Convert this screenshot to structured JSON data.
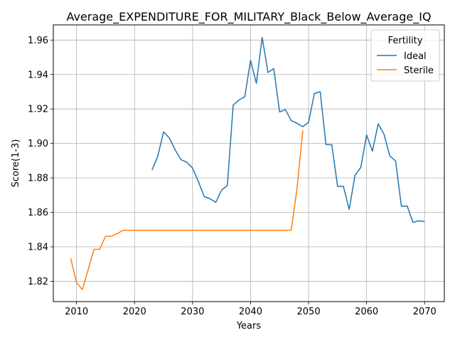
{
  "chart_data": {
    "type": "line",
    "title": "Average_EXPENDITURE_FOR_MILITARY_Black_Below_Average_IQ",
    "xlabel": "Years",
    "ylabel": "Score(1-3)",
    "xlim": [
      2006,
      2073.4
    ],
    "ylim": [
      1.8082,
      1.9688
    ],
    "xticks": [
      2010,
      2020,
      2030,
      2040,
      2050,
      2060,
      2070
    ],
    "yticks": [
      1.82,
      1.84,
      1.86,
      1.88,
      1.9,
      1.92,
      1.94,
      1.96
    ],
    "ytick_labels": [
      "1.82",
      "1.84",
      "1.86",
      "1.88",
      "1.90",
      "1.92",
      "1.94",
      "1.96"
    ],
    "grid": true,
    "legend": {
      "title": "Fertility",
      "position": "upper right"
    },
    "series": [
      {
        "name": "Ideal",
        "color": "#1f77b4",
        "x": [
          2023,
          2024,
          2025,
          2026,
          2027,
          2028,
          2029,
          2030,
          2031,
          2032,
          2033,
          2034,
          2035,
          2036,
          2037,
          2038,
          2039,
          2040,
          2041,
          2042,
          2043,
          2044,
          2045,
          2046,
          2047,
          2048,
          2049,
          2050,
          2051,
          2052,
          2053,
          2054,
          2055,
          2056,
          2057,
          2058,
          2059,
          2060,
          2061,
          2062,
          2063,
          2064,
          2065,
          2066,
          2067,
          2068,
          2069,
          2070
        ],
        "y": [
          1.8845,
          1.8925,
          1.9067,
          1.9032,
          1.8963,
          1.8906,
          1.8891,
          1.8857,
          1.8779,
          1.8692,
          1.8679,
          1.8658,
          1.8729,
          1.8756,
          1.9222,
          1.9252,
          1.9271,
          1.9482,
          1.9349,
          1.9615,
          1.9412,
          1.9434,
          1.9183,
          1.9196,
          1.9133,
          1.9117,
          1.9097,
          1.9123,
          1.929,
          1.93,
          1.8993,
          1.8993,
          1.8751,
          1.8751,
          1.8617,
          1.8815,
          1.8861,
          1.905,
          1.8955,
          1.9114,
          1.9054,
          1.8927,
          1.8898,
          1.8635,
          1.8636,
          1.8542,
          1.8551,
          1.8546
        ]
      },
      {
        "name": "Sterile",
        "color": "#ff7f0e",
        "x": [
          2009,
          2010,
          2011,
          2012,
          2013,
          2014,
          2015,
          2016,
          2017,
          2018,
          2019,
          2020,
          2021,
          2022,
          2023,
          2024,
          2025,
          2026,
          2027,
          2028,
          2029,
          2030,
          2031,
          2032,
          2033,
          2034,
          2035,
          2036,
          2037,
          2038,
          2039,
          2040,
          2041,
          2042,
          2043,
          2044,
          2045,
          2046,
          2047,
          2048,
          2049
        ],
        "y": [
          1.8333,
          1.8192,
          1.8152,
          1.8267,
          1.8385,
          1.8386,
          1.8461,
          1.8462,
          1.8476,
          1.8496,
          1.8496,
          1.8496,
          1.8496,
          1.8496,
          1.8496,
          1.8496,
          1.8496,
          1.8496,
          1.8496,
          1.8496,
          1.8496,
          1.8496,
          1.8496,
          1.8496,
          1.8496,
          1.8496,
          1.8496,
          1.8496,
          1.8496,
          1.8496,
          1.8496,
          1.8496,
          1.8496,
          1.8496,
          1.8496,
          1.8496,
          1.8496,
          1.8496,
          1.8496,
          1.8736,
          1.9075
        ]
      }
    ]
  }
}
